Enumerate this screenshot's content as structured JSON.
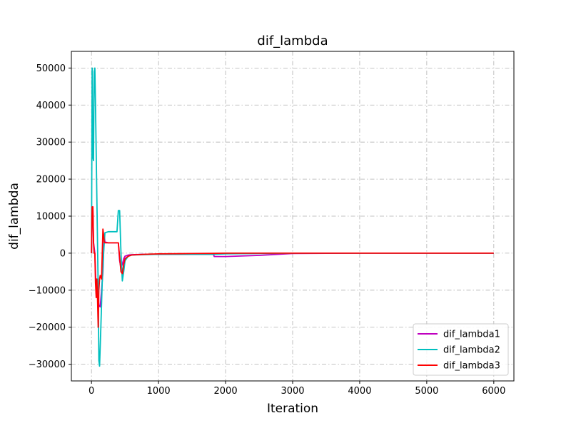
{
  "chart_data": {
    "type": "line",
    "title": "dif_lambda",
    "xlabel": "Iteration",
    "ylabel": "dif_lambda",
    "xlim": [
      -300,
      6300
    ],
    "ylim": [
      -34500,
      54500
    ],
    "xticks": [
      0,
      1000,
      2000,
      3000,
      4000,
      5000,
      6000
    ],
    "yticks": [
      -30000,
      -20000,
      -10000,
      0,
      10000,
      20000,
      30000,
      40000,
      50000
    ],
    "grid": true,
    "legend_position": "lower-right",
    "series": [
      {
        "name": "dif_lambda1",
        "color": "#bf00bf",
        "x": [
          0,
          10,
          20,
          30,
          50,
          70,
          90,
          100,
          110,
          130,
          150,
          170,
          190,
          200,
          250,
          300,
          350,
          400,
          420,
          440,
          460,
          480,
          500,
          550,
          600,
          800,
          1000,
          1500,
          1820,
          1830,
          2000,
          2500,
          3000,
          4000,
          5000,
          6000
        ],
        "y": [
          0,
          12000,
          12500,
          3000,
          0,
          -11000,
          -11500,
          -9000,
          -14000,
          -14500,
          -10000,
          -5000,
          5000,
          3000,
          2800,
          2800,
          2800,
          2800,
          -2000,
          -4000,
          -3000,
          -1500,
          -800,
          -500,
          -400,
          -300,
          -300,
          -300,
          -300,
          -900,
          -900,
          -600,
          -100,
          0,
          0,
          0
        ]
      },
      {
        "name": "dif_lambda2",
        "color": "#00bfbf",
        "x": [
          0,
          10,
          20,
          30,
          40,
          50,
          60,
          80,
          100,
          110,
          120,
          140,
          160,
          180,
          200,
          250,
          300,
          350,
          380,
          400,
          420,
          440,
          460,
          480,
          500,
          550,
          600,
          800,
          1000,
          1500,
          1820,
          2000,
          2500,
          3000,
          4000,
          5000,
          6000
        ],
        "y": [
          0,
          50000,
          26000,
          25000,
          49000,
          50000,
          40000,
          15000,
          -10000,
          -29000,
          -30500,
          -20000,
          -8000,
          0,
          5500,
          5800,
          5800,
          5800,
          5800,
          11500,
          11500,
          0,
          -7500,
          -5000,
          -2000,
          -800,
          -500,
          -400,
          -300,
          -300,
          -300,
          -200,
          -100,
          0,
          0,
          0,
          0
        ]
      },
      {
        "name": "dif_lambda3",
        "color": "#ff0000",
        "x": [
          0,
          5,
          10,
          20,
          30,
          40,
          50,
          60,
          70,
          80,
          90,
          100,
          110,
          120,
          130,
          150,
          170,
          180,
          190,
          200,
          210,
          250,
          300,
          350,
          400,
          420,
          440,
          460,
          480,
          500,
          550,
          600,
          800,
          1000,
          1500,
          1820,
          2000,
          3000,
          4000,
          5000,
          6000
        ],
        "y": [
          0,
          8000,
          12500,
          12500,
          3000,
          0,
          0,
          -8000,
          -12000,
          -7000,
          -12000,
          -20000,
          -10000,
          -7000,
          -6000,
          -7000,
          6500,
          5000,
          3000,
          2800,
          2800,
          2800,
          2800,
          2800,
          2800,
          -1000,
          -5000,
          -5500,
          -3000,
          -1500,
          -800,
          -500,
          -300,
          -200,
          -100,
          -50,
          0,
          0,
          0,
          0,
          0
        ]
      }
    ]
  }
}
